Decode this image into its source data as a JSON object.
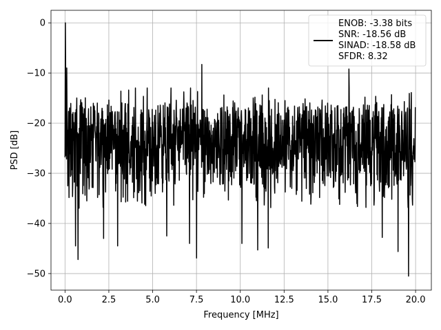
{
  "chart_data": {
    "type": "line",
    "title": "",
    "xlabel": "Frequency [MHz]",
    "ylabel": "PSD [dB]",
    "xlim": [
      -0.8,
      20.9
    ],
    "ylim": [
      -53.3,
      2.5
    ],
    "xticks": [
      0.0,
      2.5,
      5.0,
      7.5,
      10.0,
      12.5,
      15.0,
      17.5,
      20.0
    ],
    "xtick_labels": [
      "0.0",
      "2.5",
      "5.0",
      "7.5",
      "10.0",
      "12.5",
      "15.0",
      "17.5",
      "20.0"
    ],
    "yticks": [
      0,
      -10,
      -20,
      -30,
      -40,
      -50
    ],
    "ytick_labels": [
      "0",
      "−10",
      "−20",
      "−30",
      "−40",
      "−50"
    ],
    "grid": true,
    "legend": {
      "placement": "top-right",
      "lines": [
        "ENOB: -3.38 bits",
        "SNR: -18.56 dB",
        "SINAD: -18.58 dB",
        "SFDR: 8.32"
      ]
    },
    "series": [
      {
        "color": "#000000",
        "x_range": [
          0.0,
          20.0
        ],
        "peak": {
          "x": 0.02,
          "y": 0.0
        },
        "typical_range": [
          -35,
          -15
        ],
        "max_outside_peak": -8.3,
        "min": -50.5,
        "notable_points": [
          {
            "x": 0.1,
            "y": -9.0
          },
          {
            "x": 0.6,
            "y": -44.5
          },
          {
            "x": 0.75,
            "y": -47.2
          },
          {
            "x": 2.2,
            "y": -43.0
          },
          {
            "x": 3.0,
            "y": -44.5
          },
          {
            "x": 5.8,
            "y": -42.5
          },
          {
            "x": 7.1,
            "y": -44.0
          },
          {
            "x": 7.5,
            "y": -46.9
          },
          {
            "x": 7.8,
            "y": -8.3
          },
          {
            "x": 10.1,
            "y": -44.0
          },
          {
            "x": 11.0,
            "y": -45.3
          },
          {
            "x": 11.6,
            "y": -44.9
          },
          {
            "x": 16.2,
            "y": -9.2
          },
          {
            "x": 18.1,
            "y": -42.8
          },
          {
            "x": 19.0,
            "y": -45.6
          },
          {
            "x": 19.6,
            "y": -50.5
          }
        ]
      }
    ]
  }
}
